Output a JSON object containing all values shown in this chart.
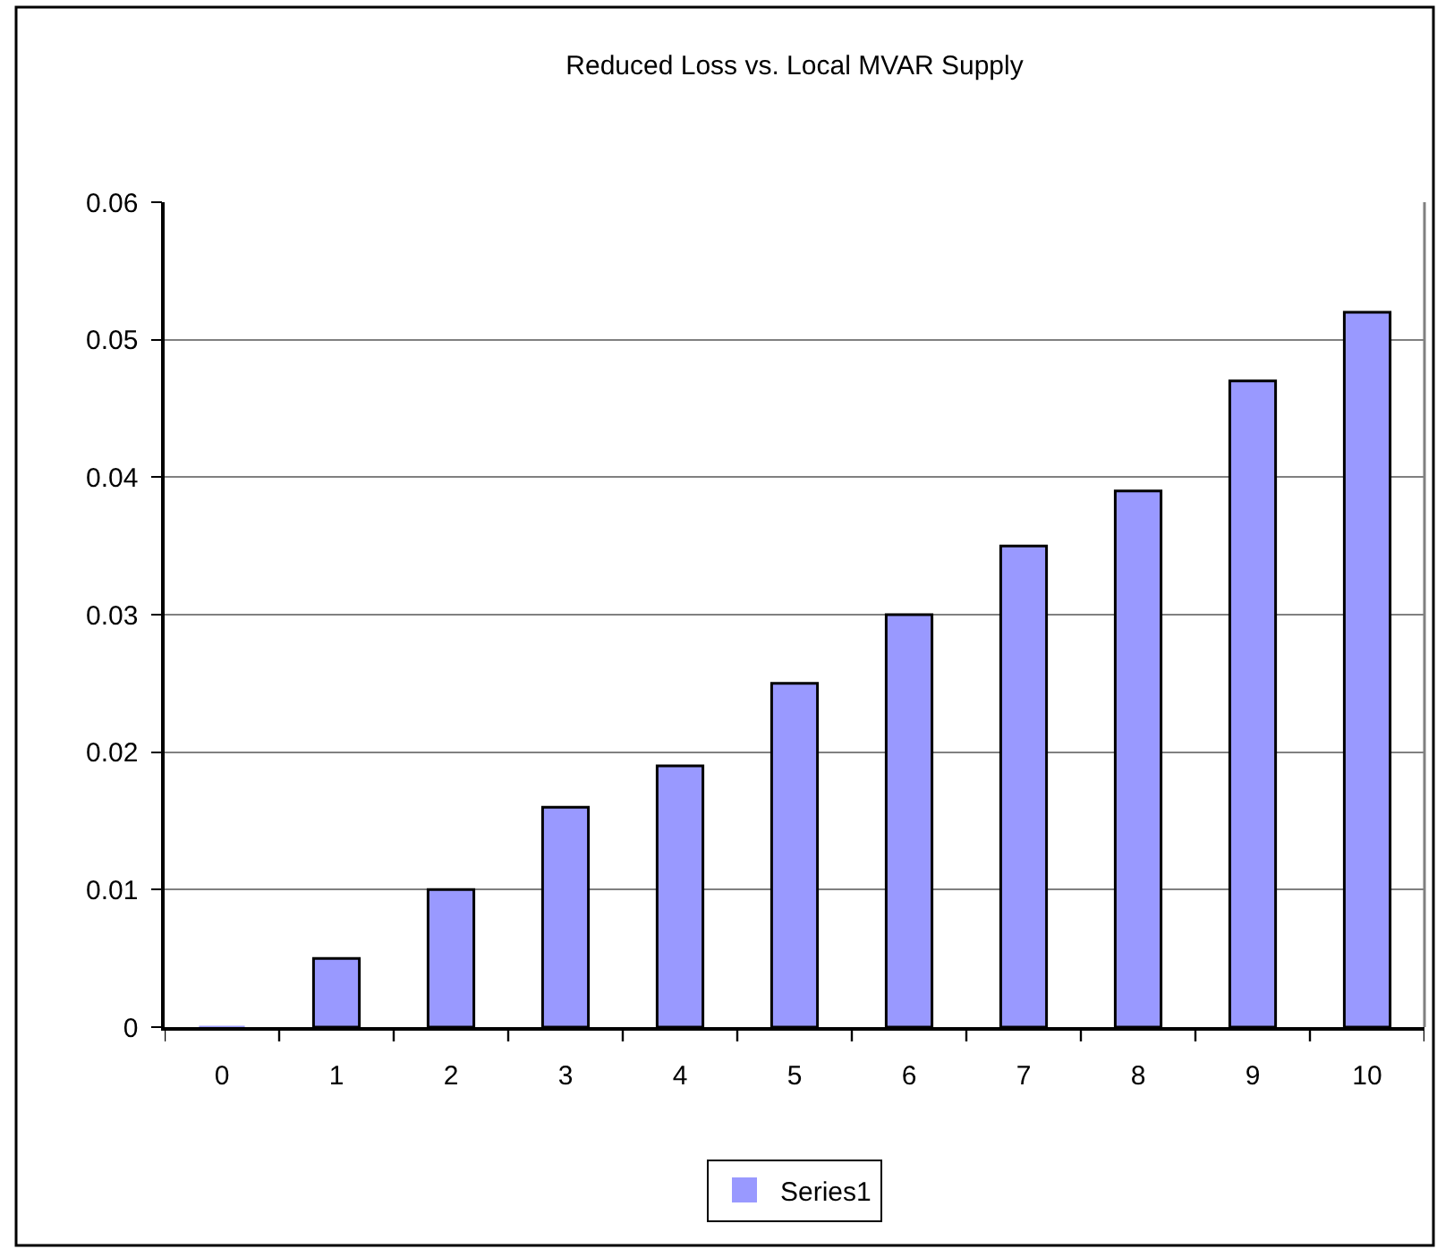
{
  "chart_data": {
    "type": "bar",
    "title": "Reduced Loss vs. Local MVAR Supply",
    "categories": [
      "0",
      "1",
      "2",
      "3",
      "4",
      "5",
      "6",
      "7",
      "8",
      "9",
      "10"
    ],
    "series": [
      {
        "name": "Series1",
        "color": "#9999ff",
        "values": [
          0,
          0.005,
          0.01,
          0.016,
          0.019,
          0.025,
          0.03,
          0.035,
          0.039,
          0.047,
          0.052
        ]
      }
    ],
    "ylim": [
      0,
      0.06
    ],
    "yticks": [
      0,
      0.01,
      0.02,
      0.03,
      0.04,
      0.05,
      0.06
    ],
    "grid": "y",
    "legend": "bottom"
  }
}
